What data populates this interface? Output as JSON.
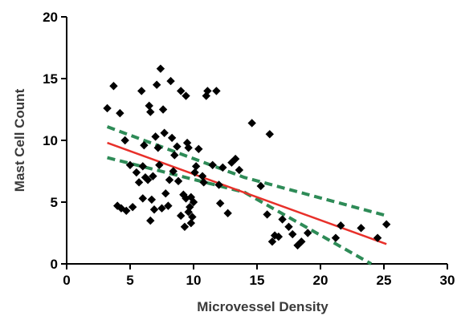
{
  "chart_data": {
    "type": "scatter",
    "xlabel": "Microvessel Density",
    "ylabel": "Mast Cell Count",
    "xlim": [
      0,
      30
    ],
    "ylim": [
      0,
      20
    ],
    "x_ticks": [
      0,
      5,
      10,
      15,
      20,
      25,
      30
    ],
    "y_ticks": [
      0,
      5,
      10,
      15,
      20
    ],
    "grid": false,
    "legend": "none",
    "colors": {
      "points": "#000000",
      "fit": "#e8302a",
      "ci": "#2e8b57",
      "axis": "#000000"
    },
    "points": [
      [
        3.2,
        12.6
      ],
      [
        3.7,
        14.4
      ],
      [
        4.0,
        4.7
      ],
      [
        4.2,
        12.2
      ],
      [
        4.3,
        4.5
      ],
      [
        4.6,
        10.0
      ],
      [
        4.7,
        4.3
      ],
      [
        5.0,
        8.0
      ],
      [
        5.2,
        4.6
      ],
      [
        5.5,
        7.4
      ],
      [
        5.7,
        6.6
      ],
      [
        5.9,
        14.0
      ],
      [
        6.0,
        7.9
      ],
      [
        6.0,
        5.3
      ],
      [
        6.1,
        9.6
      ],
      [
        6.2,
        7.0
      ],
      [
        6.4,
        6.8
      ],
      [
        6.5,
        12.8
      ],
      [
        6.6,
        12.3
      ],
      [
        6.6,
        3.5
      ],
      [
        6.7,
        5.2
      ],
      [
        6.8,
        7.1
      ],
      [
        6.9,
        4.4
      ],
      [
        7.0,
        10.3
      ],
      [
        7.1,
        14.5
      ],
      [
        7.2,
        9.4
      ],
      [
        7.3,
        8.0
      ],
      [
        7.4,
        15.8
      ],
      [
        7.5,
        4.5
      ],
      [
        7.6,
        12.5
      ],
      [
        7.7,
        10.6
      ],
      [
        7.8,
        5.7
      ],
      [
        8.0,
        4.7
      ],
      [
        8.1,
        6.8
      ],
      [
        8.2,
        14.8
      ],
      [
        8.3,
        10.2
      ],
      [
        8.4,
        7.5
      ],
      [
        8.5,
        8.8
      ],
      [
        8.7,
        9.5
      ],
      [
        8.8,
        6.7
      ],
      [
        9.0,
        14.0
      ],
      [
        9.0,
        3.9
      ],
      [
        9.2,
        5.6
      ],
      [
        9.3,
        3.0
      ],
      [
        9.4,
        13.6
      ],
      [
        9.4,
        5.3
      ],
      [
        9.5,
        9.8
      ],
      [
        9.6,
        9.4
      ],
      [
        9.6,
        4.2
      ],
      [
        9.7,
        4.6
      ],
      [
        9.8,
        3.3
      ],
      [
        9.8,
        5.4
      ],
      [
        9.9,
        3.8
      ],
      [
        10.0,
        5.0
      ],
      [
        10.1,
        7.4
      ],
      [
        10.2,
        7.9
      ],
      [
        10.4,
        9.3
      ],
      [
        10.7,
        7.1
      ],
      [
        10.8,
        6.6
      ],
      [
        11.0,
        13.6
      ],
      [
        11.1,
        14.0
      ],
      [
        11.5,
        8.0
      ],
      [
        11.8,
        14.0
      ],
      [
        12.0,
        6.4
      ],
      [
        12.1,
        4.9
      ],
      [
        12.3,
        7.8
      ],
      [
        12.7,
        4.1
      ],
      [
        13.0,
        8.2
      ],
      [
        13.3,
        8.5
      ],
      [
        13.6,
        7.6
      ],
      [
        14.6,
        11.4
      ],
      [
        15.3,
        6.3
      ],
      [
        15.8,
        4.0
      ],
      [
        16.0,
        10.5
      ],
      [
        16.2,
        1.8
      ],
      [
        16.4,
        2.3
      ],
      [
        16.7,
        2.2
      ],
      [
        17.0,
        3.6
      ],
      [
        17.5,
        3.0
      ],
      [
        17.8,
        2.4
      ],
      [
        18.2,
        1.5
      ],
      [
        18.5,
        1.8
      ],
      [
        19.0,
        2.5
      ],
      [
        21.2,
        2.1
      ],
      [
        21.6,
        3.1
      ],
      [
        23.2,
        2.9
      ],
      [
        24.5,
        2.1
      ],
      [
        25.2,
        3.2
      ]
    ],
    "fit_line": {
      "x": [
        3.2,
        25.2
      ],
      "y": [
        9.8,
        1.6
      ]
    },
    "ci_upper": {
      "x": [
        3.2,
        14.0,
        25.2
      ],
      "y": [
        11.1,
        7.0,
        3.9
      ]
    },
    "ci_lower": {
      "x": [
        3.2,
        14.0,
        24.0
      ],
      "y": [
        8.6,
        5.8,
        0.0
      ]
    }
  }
}
